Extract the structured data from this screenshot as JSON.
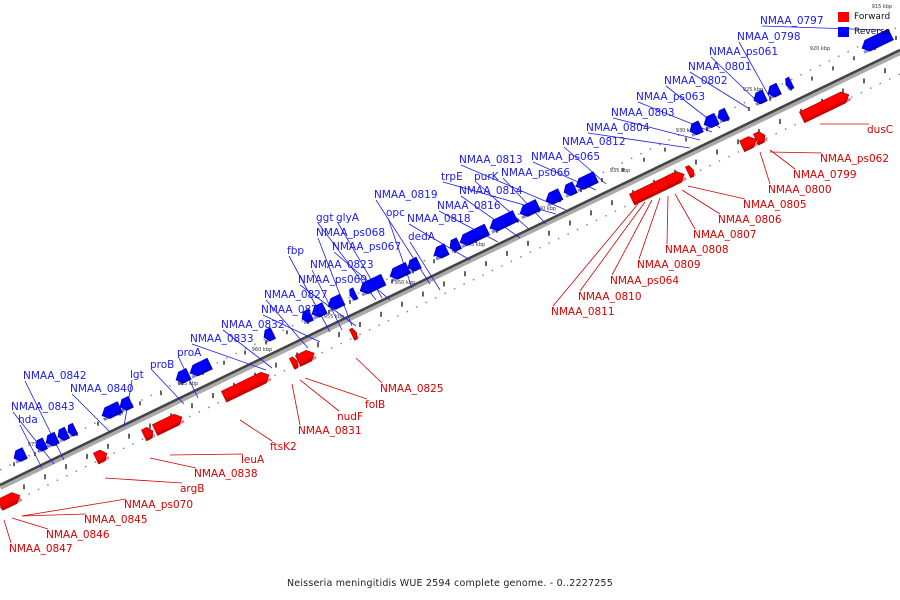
{
  "colors": {
    "forward": "#ff0000",
    "reverse": "#0000ff",
    "forward_text": "#d40000",
    "reverse_text": "#1a1aee"
  },
  "legend": [
    {
      "label": "Forward",
      "color": "#ff0000"
    },
    {
      "label": "Reverse",
      "color": "#0000ff"
    }
  ],
  "caption": "Neisseria meningitidis WUE 2594 complete genome. - 0..2227255",
  "kbp_labels": [
    "915 kbp",
    "920 kbp",
    "925 kbp",
    "930 kbp",
    "935 kbp",
    "940 kbp",
    "945 kbp",
    "950 kbp",
    "955 kbp",
    "960 kbp",
    "965 kbp",
    "970 kbp",
    "975 kbp"
  ],
  "forward_genes": [
    "dusC",
    "NMAA_ps062",
    "NMAA_0799",
    "NMAA_0800",
    "NMAA_0805",
    "NMAA_0806",
    "NMAA_0807",
    "NMAA_0808",
    "NMAA_0809",
    "NMAA_ps064",
    "NMAA_0810",
    "NMAA_0811",
    "NMAA_0825",
    "folB",
    "nudF",
    "NMAA_0831",
    "ftsK2",
    "leuA",
    "NMAA_0838",
    "argB",
    "NMAA_ps070",
    "NMAA_0845",
    "NMAA_0846",
    "NMAA_0847"
  ],
  "reverse_genes": [
    "NMAA_0797",
    "NMAA_0798",
    "NMAA_ps061",
    "NMAA_0801",
    "NMAA_0802",
    "NMAA_ps063",
    "NMAA_0803",
    "NMAA_0804",
    "NMAA_0812",
    "NMAA_ps065",
    "NMAA_0813",
    "trpE",
    "purK",
    "NMAA_ps066",
    "NMAA_0814",
    "NMAA_0819",
    "NMAA_0816",
    "opc",
    "NMAA_0818",
    "ggt",
    "glyA",
    "dedA",
    "NMAA_ps068",
    "NMAA_ps067",
    "fbp",
    "NMAA_0823",
    "NMAA_ps069",
    "NMAA_0827",
    "NMAA_0828",
    "NMAA_0832",
    "NMAA_0833",
    "proA",
    "proB",
    "lgt",
    "NMAA_0840",
    "NMAA_0842",
    "NMAA_0843",
    "hda"
  ]
}
